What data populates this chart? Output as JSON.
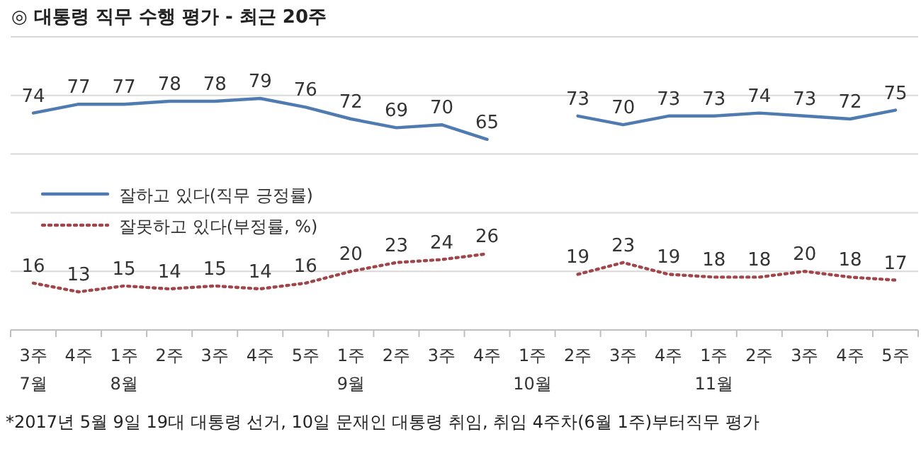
{
  "chart_data": {
    "type": "line",
    "title": "◎  대통령 직무 수행 평가 - 최근 20주",
    "categories": [
      "3주\n7월",
      "4주",
      "1주\n8월",
      "2주",
      "3주",
      "4주",
      "5주",
      "1주\n9월",
      "2주",
      "3주",
      "4주",
      "1주\n10월",
      "2주",
      "3주",
      "4주",
      "1주\n11월",
      "2주",
      "3주",
      "4주",
      "5주"
    ],
    "series": [
      {
        "name": "잘하고 있다(직무 긍정률)",
        "color": "#4f7bb0",
        "line_style": "solid",
        "values": [
          74,
          77,
          77,
          78,
          78,
          79,
          76,
          72,
          69,
          70,
          65,
          null,
          73,
          70,
          73,
          73,
          74,
          73,
          72,
          75
        ]
      },
      {
        "name": "잘못하고 있다(부정률, %)",
        "color": "#a0464a",
        "line_style": "dotted",
        "values": [
          16,
          13,
          15,
          14,
          15,
          14,
          16,
          20,
          23,
          24,
          26,
          null,
          19,
          23,
          19,
          18,
          18,
          20,
          18,
          17
        ]
      }
    ],
    "ylim": [
      0,
      100
    ],
    "yticks": [
      {
        "value": 0,
        "label": null
      },
      {
        "value": 20,
        "label": null
      },
      {
        "value": 40,
        "label": null
      },
      {
        "value": 60,
        "label": null
      },
      {
        "value": 80,
        "label": null
      },
      {
        "value": 100,
        "label": null
      }
    ],
    "grid": "y",
    "tick_labels": "x",
    "data_labels": true,
    "legend": "left",
    "marker": "none",
    "annotations": [
      "*2017년 5월 9일 19대 대통령 선거, 10일 문재인 대통령 취임, 취임 4주차(6월 1주)부터직무 평가"
    ]
  }
}
